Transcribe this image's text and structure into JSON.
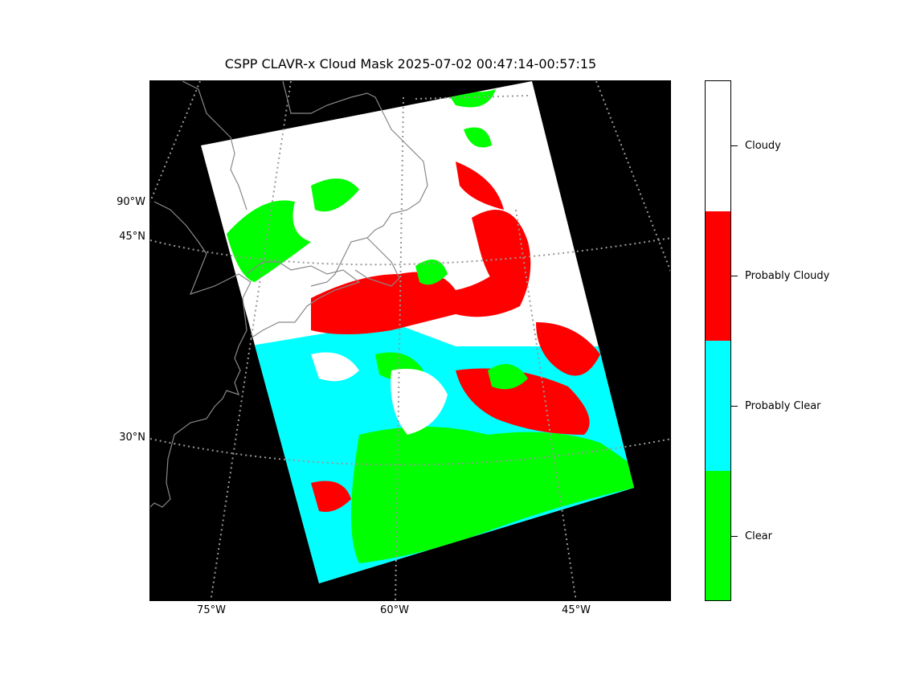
{
  "title": "CSPP CLAVR-x Cloud Mask 2025-07-02 00:47:14-00:57:15",
  "map": {
    "lat_labels": [
      "90°W",
      "45°N",
      "30°N"
    ],
    "lon_labels": [
      "75°W",
      "60°W",
      "45°W"
    ],
    "background": "#000000",
    "coastline_color": "#888888",
    "gridline_color": "#999999"
  },
  "colorbar": {
    "categories": [
      {
        "label": "Cloudy",
        "color": "#ffffff"
      },
      {
        "label": "Probably Cloudy",
        "color": "#ff0000"
      },
      {
        "label": "Probably Clear",
        "color": "#00ffff"
      },
      {
        "label": "Clear",
        "color": "#00ff00"
      }
    ]
  }
}
